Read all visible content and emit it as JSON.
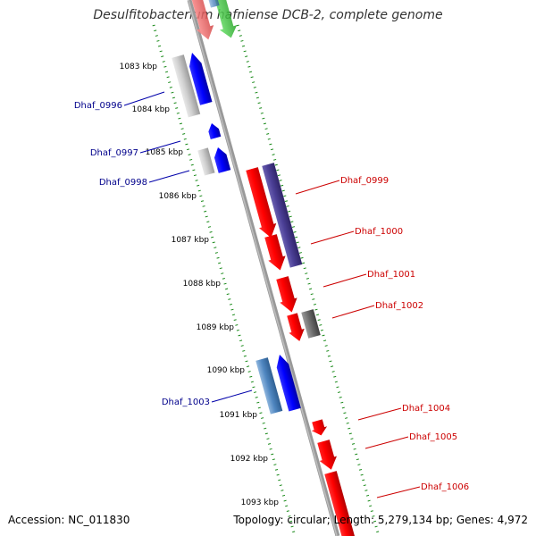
{
  "title": "Desulfitobacterium hafniense DCB-2, complete genome",
  "footer": {
    "accession": "Accession: NC_011830",
    "summary": "Topology: circular; Length: 5,279,134 bp; Genes: 4,972"
  },
  "colors": {
    "backbone": "#888888",
    "ruler_dots": "#1a8a1a",
    "label_forward_text": "#cc0000",
    "label_reverse_text": "#00008b"
  },
  "ruler": [
    {
      "label": "1083 kbp"
    },
    {
      "label": "1084 kbp"
    },
    {
      "label": "1085 kbp"
    },
    {
      "label": "1086 kbp"
    },
    {
      "label": "1087 kbp"
    },
    {
      "label": "1088 kbp"
    },
    {
      "label": "1089 kbp"
    },
    {
      "label": "1090 kbp"
    },
    {
      "label": "1091 kbp"
    },
    {
      "label": "1092 kbp"
    },
    {
      "label": "1093 kbp"
    }
  ],
  "gene_labels": [
    {
      "text": "Dhaf_0996",
      "strand": "reverse"
    },
    {
      "text": "Dhaf_0997",
      "strand": "reverse"
    },
    {
      "text": "Dhaf_0998",
      "strand": "reverse"
    },
    {
      "text": "Dhaf_0999",
      "strand": "forward"
    },
    {
      "text": "Dhaf_1000",
      "strand": "forward"
    },
    {
      "text": "Dhaf_1001",
      "strand": "forward"
    },
    {
      "text": "Dhaf_1002",
      "strand": "forward"
    },
    {
      "text": "Dhaf_1003",
      "strand": "reverse"
    },
    {
      "text": "Dhaf_1004",
      "strand": "forward"
    },
    {
      "text": "Dhaf_1005",
      "strand": "forward"
    },
    {
      "text": "Dhaf_1006",
      "strand": "forward"
    }
  ]
}
